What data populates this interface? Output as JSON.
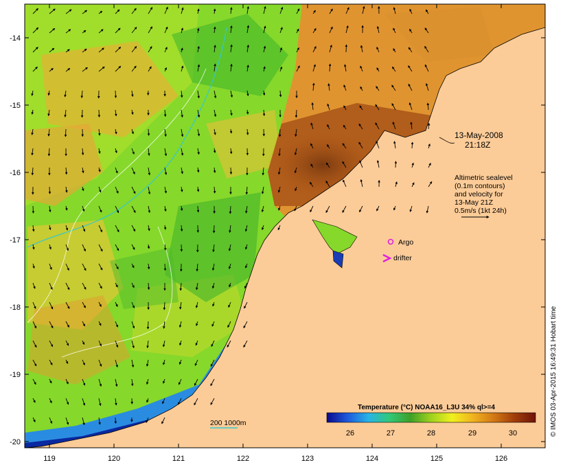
{
  "map": {
    "date_label": "13-May-2008",
    "time_label": "21:18Z",
    "altimetry_lines": [
      "Altimetric sealevel",
      "(0.1m contours)",
      "and velocity for",
      "13-May 21Z",
      "0.5m/s (1kt 24h)"
    ],
    "legend": {
      "argo": "Argo",
      "drifter": "drifter"
    },
    "depth_contours": "200  1000m",
    "x_ticks": [
      "119",
      "120",
      "121",
      "122",
      "123",
      "124",
      "125",
      "126"
    ],
    "y_ticks": [
      "-14",
      "-15",
      "-16",
      "-17",
      "-18",
      "-19",
      "-20"
    ],
    "colorbar": {
      "title": "Temperature (°C) NOAA16_L3U 34% ql>=4",
      "ticks": [
        "26",
        "27",
        "28",
        "29",
        "30"
      ],
      "colors": [
        "#0a0a8c",
        "#1e5adc",
        "#28b4e6",
        "#32c878",
        "#3ca028",
        "#a0d21e",
        "#f0f01e",
        "#f0b41e",
        "#d27814",
        "#a03c0a",
        "#6e140a"
      ]
    },
    "credit": "© IMOS 03-Apr-2015 16:49:31 Hobart time",
    "colors": {
      "land": "#fccc98",
      "sea_mid": "#86d82a",
      "sea_warm": "#e8a83a",
      "sea_hot": "#9c4a10",
      "magenta": "#e020e0"
    }
  }
}
